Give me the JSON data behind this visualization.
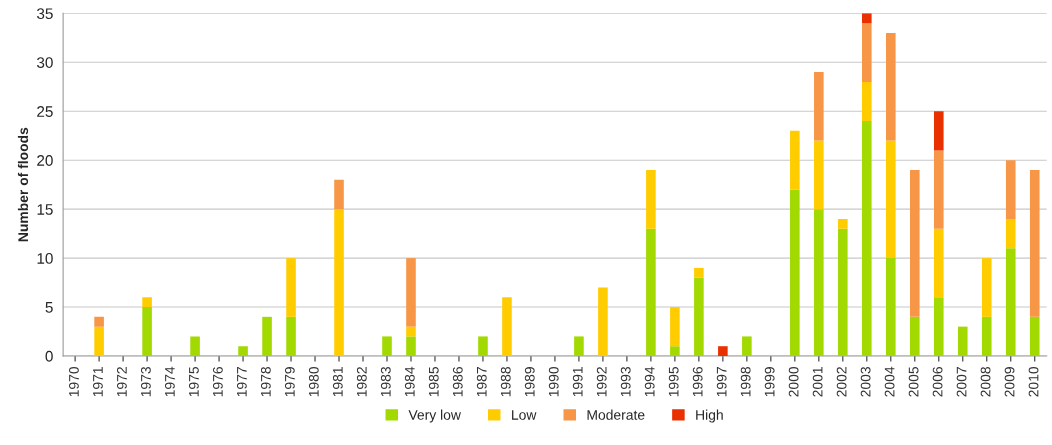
{
  "chart_data": {
    "type": "bar",
    "stacked": true,
    "ylabel": "Number of floods",
    "categories": [
      "1970",
      "1971",
      "1972",
      "1973",
      "1974",
      "1975",
      "1976",
      "1977",
      "1978",
      "1979",
      "1980",
      "1981",
      "1982",
      "1983",
      "1984",
      "1985",
      "1986",
      "1987",
      "1988",
      "1989",
      "1990",
      "1991",
      "1992",
      "1993",
      "1994",
      "1995",
      "1996",
      "1997",
      "1998",
      "1999",
      "2000",
      "2001",
      "2002",
      "2003",
      "2004",
      "2005",
      "2006",
      "2007",
      "2008",
      "2009",
      "2010"
    ],
    "series": [
      {
        "name": "Very low",
        "color": "#a2d900",
        "values": [
          0,
          0,
          0,
          5,
          0,
          2,
          0,
          1,
          4,
          4,
          0,
          0,
          0,
          2,
          2,
          0,
          0,
          2,
          0,
          0,
          0,
          2,
          0,
          0,
          13,
          1,
          8,
          0,
          2,
          0,
          17,
          15,
          13,
          24,
          10,
          4,
          6,
          3,
          4,
          11,
          4
        ]
      },
      {
        "name": "Low",
        "color": "#ffcc00",
        "values": [
          0,
          3,
          0,
          1,
          0,
          0,
          0,
          0,
          0,
          6,
          0,
          15,
          0,
          0,
          1,
          0,
          0,
          0,
          6,
          0,
          0,
          0,
          7,
          0,
          6,
          4,
          1,
          0,
          0,
          0,
          6,
          7,
          1,
          4,
          12,
          0,
          7,
          0,
          6,
          3,
          0
        ]
      },
      {
        "name": "Moderate",
        "color": "#f79646",
        "values": [
          0,
          1,
          0,
          0,
          0,
          0,
          0,
          0,
          0,
          0,
          0,
          3,
          0,
          0,
          7,
          0,
          0,
          0,
          0,
          0,
          0,
          0,
          0,
          0,
          0,
          0,
          0,
          0,
          0,
          0,
          0,
          7,
          0,
          6,
          11,
          15,
          8,
          0,
          0,
          6,
          15
        ]
      },
      {
        "name": "High",
        "color": "#e83000",
        "values": [
          0,
          0,
          0,
          0,
          0,
          0,
          0,
          0,
          0,
          0,
          0,
          0,
          0,
          0,
          0,
          0,
          0,
          0,
          0,
          0,
          0,
          0,
          0,
          0,
          0,
          0,
          0,
          1,
          0,
          0,
          0,
          0,
          0,
          1,
          0,
          0,
          4,
          0,
          0,
          0,
          0
        ]
      }
    ],
    "ylim": [
      0,
      35
    ],
    "yticks": [
      0,
      5,
      10,
      15,
      20,
      25,
      30,
      35
    ],
    "grid": "y",
    "legend": "bottom"
  }
}
